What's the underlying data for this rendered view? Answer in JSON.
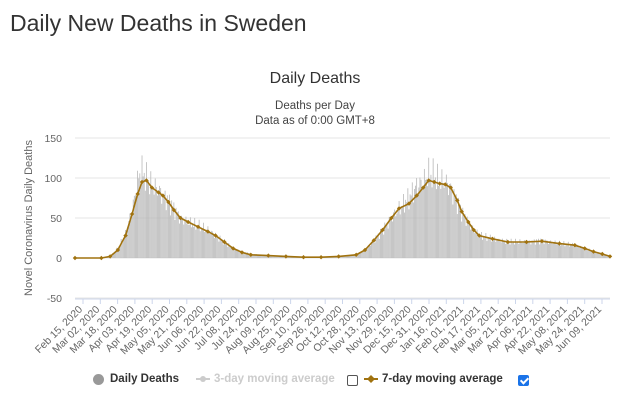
{
  "page_title": "Daily New Deaths in Sweden",
  "legend": {
    "daily": "Daily Deaths",
    "ma3": "3-day moving average",
    "ma7": "7-day moving average",
    "ma3_checked": false,
    "ma7_checked": true
  },
  "colors": {
    "bar": "#b5b5b5",
    "line": "#a0720f",
    "ma3": "#c8c8c8",
    "grid": "#e6e6e6"
  },
  "chart_data": {
    "type": "bar",
    "title": "Daily Deaths",
    "subtitle_line1": "Deaths per Day",
    "subtitle_line2": "Data as of 0:00 GMT+8",
    "ylabel": "Novel Coronavirus Daily Deaths",
    "ylim": [
      -50,
      150
    ],
    "yticks": [
      -50,
      0,
      50,
      100,
      150
    ],
    "grid": true,
    "x_range": [
      "2020-02-15",
      "2021-06-16"
    ],
    "xtick_labels": [
      "Feb 15, 2020",
      "Mar 02, 2020",
      "Mar 18, 2020",
      "Apr 03, 2020",
      "Apr 19, 2020",
      "May 05, 2020",
      "May 21, 2020",
      "Jun 06, 2020",
      "Jun 22, 2020",
      "Jul 08, 2020",
      "Jul 24, 2020",
      "Aug 09, 2020",
      "Aug 25, 2020",
      "Sep 10, 2020",
      "Sep 26, 2020",
      "Oct 12, 2020",
      "Oct 28, 2020",
      "Nov 13, 2020",
      "Nov 29, 2020",
      "Dec 15, 2020",
      "Dec 31, 2020",
      "Jan 16, 2021",
      "Feb 01, 2021",
      "Feb 17, 2021",
      "Mar 05, 2021",
      "Mar 21, 2021",
      "Apr 06, 2021",
      "Apr 22, 2021",
      "May 08, 2021",
      "May 24, 2021",
      "Jun 09, 2021"
    ],
    "series": [
      {
        "name": "Daily Deaths",
        "kind": "bar",
        "points": [
          [
            "2020-02-15",
            0
          ],
          [
            "2020-03-10",
            0
          ],
          [
            "2020-03-18",
            2
          ],
          [
            "2020-03-25",
            12
          ],
          [
            "2020-04-01",
            30
          ],
          [
            "2020-04-07",
            60
          ],
          [
            "2020-04-12",
            95
          ],
          [
            "2020-04-15",
            110
          ],
          [
            "2020-04-20",
            100
          ],
          [
            "2020-04-25",
            90
          ],
          [
            "2020-05-01",
            85
          ],
          [
            "2020-05-05",
            78
          ],
          [
            "2020-05-10",
            72
          ],
          [
            "2020-05-15",
            62
          ],
          [
            "2020-05-21",
            50
          ],
          [
            "2020-05-28",
            44
          ],
          [
            "2020-06-06",
            40
          ],
          [
            "2020-06-15",
            35
          ],
          [
            "2020-06-22",
            28
          ],
          [
            "2020-06-30",
            20
          ],
          [
            "2020-07-08",
            12
          ],
          [
            "2020-07-16",
            8
          ],
          [
            "2020-07-24",
            5
          ],
          [
            "2020-08-09",
            3
          ],
          [
            "2020-08-25",
            2
          ],
          [
            "2020-09-10",
            1
          ],
          [
            "2020-09-26",
            1
          ],
          [
            "2020-10-12",
            2
          ],
          [
            "2020-10-20",
            3
          ],
          [
            "2020-10-28",
            4
          ],
          [
            "2020-11-05",
            10
          ],
          [
            "2020-11-13",
            22
          ],
          [
            "2020-11-21",
            35
          ],
          [
            "2020-11-29",
            50
          ],
          [
            "2020-12-06",
            62
          ],
          [
            "2020-12-15",
            75
          ],
          [
            "2020-12-22",
            90
          ],
          [
            "2020-12-28",
            95
          ],
          [
            "2021-01-02",
            105
          ],
          [
            "2021-01-07",
            102
          ],
          [
            "2021-01-12",
            95
          ],
          [
            "2021-01-17",
            95
          ],
          [
            "2021-01-22",
            88
          ],
          [
            "2021-01-28",
            70
          ],
          [
            "2021-02-01",
            58
          ],
          [
            "2021-02-07",
            45
          ],
          [
            "2021-02-12",
            35
          ],
          [
            "2021-02-17",
            28
          ],
          [
            "2021-03-01",
            24
          ],
          [
            "2021-03-15",
            20
          ],
          [
            "2021-04-01",
            20
          ],
          [
            "2021-04-15",
            22
          ],
          [
            "2021-05-01",
            18
          ],
          [
            "2021-05-15",
            16
          ],
          [
            "2021-05-24",
            12
          ],
          [
            "2021-06-01",
            8
          ],
          [
            "2021-06-09",
            5
          ],
          [
            "2021-06-16",
            2
          ]
        ]
      },
      {
        "name": "7-day moving average",
        "kind": "line",
        "points": [
          [
            "2020-02-15",
            0
          ],
          [
            "2020-03-10",
            0
          ],
          [
            "2020-03-18",
            2
          ],
          [
            "2020-03-25",
            10
          ],
          [
            "2020-04-01",
            28
          ],
          [
            "2020-04-07",
            55
          ],
          [
            "2020-04-12",
            80
          ],
          [
            "2020-04-16",
            95
          ],
          [
            "2020-04-20",
            97
          ],
          [
            "2020-04-25",
            88
          ],
          [
            "2020-05-01",
            82
          ],
          [
            "2020-05-05",
            78
          ],
          [
            "2020-05-10",
            70
          ],
          [
            "2020-05-15",
            60
          ],
          [
            "2020-05-21",
            50
          ],
          [
            "2020-05-28",
            45
          ],
          [
            "2020-06-06",
            39
          ],
          [
            "2020-06-15",
            33
          ],
          [
            "2020-06-22",
            28
          ],
          [
            "2020-06-30",
            20
          ],
          [
            "2020-07-08",
            12
          ],
          [
            "2020-07-16",
            7
          ],
          [
            "2020-07-24",
            4
          ],
          [
            "2020-08-09",
            3
          ],
          [
            "2020-08-25",
            2
          ],
          [
            "2020-09-10",
            1
          ],
          [
            "2020-09-26",
            1
          ],
          [
            "2020-10-12",
            2
          ],
          [
            "2020-10-28",
            4
          ],
          [
            "2020-11-05",
            10
          ],
          [
            "2020-11-13",
            22
          ],
          [
            "2020-11-21",
            35
          ],
          [
            "2020-11-29",
            50
          ],
          [
            "2020-12-06",
            62
          ],
          [
            "2020-12-15",
            68
          ],
          [
            "2020-12-22",
            78
          ],
          [
            "2020-12-28",
            88
          ],
          [
            "2021-01-02",
            97
          ],
          [
            "2021-01-07",
            95
          ],
          [
            "2021-01-12",
            93
          ],
          [
            "2021-01-17",
            92
          ],
          [
            "2021-01-22",
            88
          ],
          [
            "2021-01-28",
            72
          ],
          [
            "2021-02-01",
            58
          ],
          [
            "2021-02-07",
            45
          ],
          [
            "2021-02-12",
            35
          ],
          [
            "2021-02-17",
            28
          ],
          [
            "2021-03-01",
            24
          ],
          [
            "2021-03-15",
            20
          ],
          [
            "2021-04-01",
            20
          ],
          [
            "2021-04-15",
            21
          ],
          [
            "2021-05-01",
            18
          ],
          [
            "2021-05-15",
            16
          ],
          [
            "2021-05-24",
            12
          ],
          [
            "2021-06-01",
            8
          ],
          [
            "2021-06-09",
            5
          ],
          [
            "2021-06-16",
            2
          ]
        ]
      }
    ]
  }
}
